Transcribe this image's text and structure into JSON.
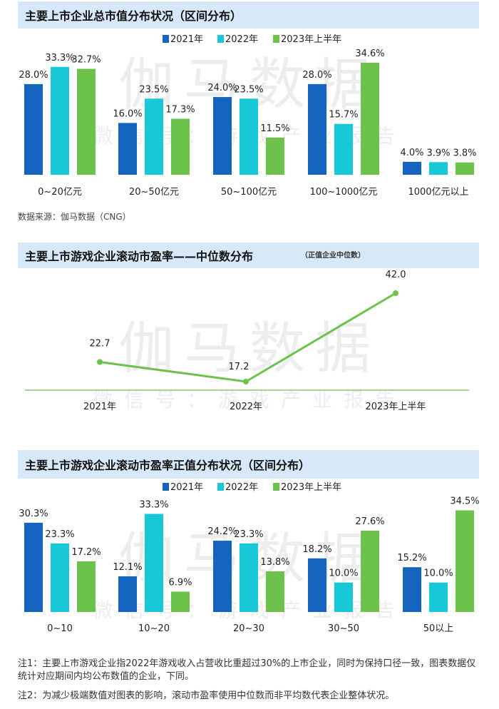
{
  "watermark": {
    "main": "伽马数据",
    "sub": "微信号：游戏产业报告"
  },
  "colors": {
    "2021": "#1565c0",
    "2022": "#17c9d6",
    "2023H1": "#6cc24a",
    "band": "#d7e8f8"
  },
  "chart_data": [
    {
      "type": "bar",
      "title": "主要上市企业总市值分布状况（区间分布）",
      "categories": [
        "0~20亿元",
        "20~50亿元",
        "50~100亿元",
        "100~1000亿元",
        "1000亿元以上"
      ],
      "series": [
        {
          "name": "2021年",
          "values": [
            28.0,
            16.0,
            24.0,
            28.0,
            4.0
          ]
        },
        {
          "name": "2022年",
          "values": [
            33.3,
            23.5,
            23.5,
            15.7,
            3.9
          ]
        },
        {
          "name": "2023年上半年",
          "values": [
            32.7,
            17.3,
            11.5,
            34.6,
            3.8
          ]
        }
      ],
      "unit": "%",
      "legend": "top",
      "source": "数据来源：伽马数据（CNG）"
    },
    {
      "type": "line",
      "title": "主要上市游戏企业滚动市盈率——中位数分布",
      "subtitle": "（正值企业中位数）",
      "categories": [
        "2021年",
        "2022年",
        "2023年上半年"
      ],
      "values": [
        22.7,
        17.2,
        42.0
      ]
    },
    {
      "type": "bar",
      "title": "主要上市游戏企业滚动市盈率正值分布状况（区间分布）",
      "categories": [
        "0~10",
        "10~20",
        "20~30",
        "30~50",
        "50以上"
      ],
      "series": [
        {
          "name": "2021年",
          "values": [
            30.3,
            12.1,
            24.2,
            18.2,
            15.2
          ]
        },
        {
          "name": "2022年",
          "values": [
            23.3,
            33.3,
            23.3,
            10.0,
            10.0
          ]
        },
        {
          "name": "2023年上半年",
          "values": [
            17.2,
            6.9,
            13.8,
            27.6,
            34.5
          ]
        }
      ],
      "unit": "%",
      "legend": "top"
    }
  ],
  "notes": [
    "注1：主要上市游戏企业指2022年游戏收入占营收比重超过30%的上市企业，同时为保持口径一致，图表数据仅统计对应期间内均公布数值的企业，下同。",
    "注2：为减少极端数值对图表的影响，滚动市盈率使用中位数而非平均数代表企业整体状况。"
  ]
}
